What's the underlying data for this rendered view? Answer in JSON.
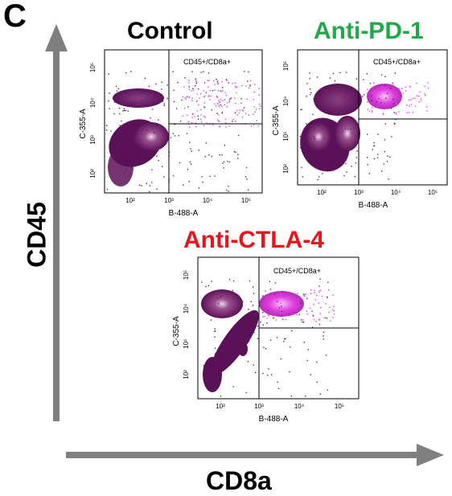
{
  "panel_letter": "C",
  "axes": {
    "x_label": "CD8a",
    "y_label": "CD45"
  },
  "colors": {
    "arrow": "#7f7f7f",
    "pd1_title": "#22a84a",
    "ctla4_title": "#e8141c",
    "density_dark": "#5a1157",
    "density_mid": "#9b4f8e",
    "density_light": "#e8d8e6",
    "gated_pink": "#e040e0"
  },
  "plots": [
    {
      "title": "Control",
      "gate_label": "CD45+/CD8a+",
      "xlabel": "B-488-A",
      "ylabel": "C-355-A",
      "xticks": [
        "10²",
        "10³",
        "10⁴",
        "10⁵"
      ],
      "yticks": [
        "10²",
        "10³",
        "10⁴",
        "10⁵"
      ]
    },
    {
      "title": "Anti-PD-1",
      "gate_label": "CD45+/CD8a+",
      "xlabel": "B-488-A",
      "ylabel": "C-355-A",
      "xticks": [
        "10²",
        "10³",
        "10⁴",
        "10⁵"
      ],
      "yticks": [
        "10²",
        "10³",
        "10⁴",
        "10⁵"
      ]
    },
    {
      "title": "Anti-CTLA-4",
      "gate_label": "CD45+/CD8a+",
      "xlabel": "B-488-A",
      "ylabel": "C-355-A",
      "xticks": [
        "10²",
        "10³",
        "10⁴",
        "10⁵"
      ],
      "yticks": [
        "10²",
        "10³",
        "10⁴",
        "10⁵"
      ]
    }
  ]
}
